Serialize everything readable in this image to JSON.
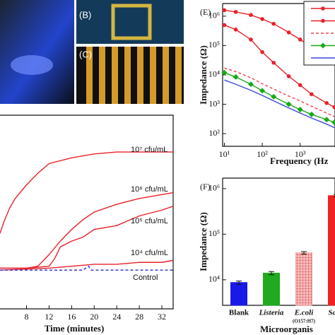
{
  "photos": {
    "labels": [
      "(B)",
      "(C)"
    ]
  },
  "chart_data": [
    {
      "type": "line",
      "x_label": "Time (minutes)",
      "xlim": [
        3.3,
        34
      ],
      "xticks": [
        8,
        12,
        16,
        20,
        24,
        28,
        32
      ],
      "ylim": [
        0,
        100
      ],
      "series": [
        {
          "name": "10⁷ cfu/mL",
          "color": "#e8202a",
          "dash": false,
          "x": [
            3.3,
            4,
            5,
            6,
            8,
            10,
            12,
            16,
            20,
            24,
            28,
            32,
            34
          ],
          "values": [
            39,
            45,
            52,
            57,
            64,
            70,
            75,
            78,
            80,
            81,
            81,
            81,
            81
          ]
        },
        {
          "name": "10⁶ cfu/mL",
          "color": "#e8202a",
          "dash": false,
          "x": [
            3.3,
            8,
            10,
            12,
            14,
            16,
            18,
            20,
            24,
            28,
            32,
            34
          ],
          "values": [
            21,
            21,
            22,
            28,
            35,
            41,
            46,
            50,
            54,
            57,
            59,
            60
          ]
        },
        {
          "name": "10⁵ cfu/mL",
          "color": "#e8202a",
          "dash": false,
          "x": [
            3.3,
            8,
            12,
            13,
            14,
            16,
            18,
            20,
            24,
            28,
            32,
            34
          ],
          "values": [
            21,
            21,
            22,
            26,
            32,
            35,
            37,
            41,
            43,
            48,
            51,
            53
          ]
        },
        {
          "name": "10⁴ cfu/mL",
          "color": "#e8202a",
          "dash": false,
          "x": [
            3.3,
            12,
            16,
            20,
            24,
            28,
            32,
            34
          ],
          "values": [
            20,
            21,
            22,
            23,
            23,
            24,
            24,
            25
          ]
        },
        {
          "name": "Control",
          "color": "#2a2ad0",
          "dash": true,
          "x": [
            3.3,
            8,
            12,
            16,
            18,
            19,
            19.5,
            20,
            24,
            28,
            32,
            34
          ],
          "values": [
            20,
            20,
            20,
            20,
            20,
            22,
            20,
            20,
            20,
            20,
            20,
            20
          ]
        }
      ]
    },
    {
      "type": "line",
      "panel_label": "(E)",
      "x_label": "Frequency (Hz",
      "y_label": "Impedance (Ω)",
      "log_x": true,
      "log_y": true,
      "xlim": [
        9,
        8300
      ],
      "ylim": [
        37,
        2700000
      ],
      "xticks": [
        {
          "value": 10,
          "label": "10¹"
        },
        {
          "value": 100,
          "label": "10²"
        },
        {
          "value": 1000,
          "label": "10³"
        }
      ],
      "yticks": [
        {
          "value": 100,
          "label": "10²"
        },
        {
          "value": 1000,
          "label": "10³"
        },
        {
          "value": 10000,
          "label": "10⁴"
        },
        {
          "value": 100000,
          "label": "10⁵"
        },
        {
          "value": 1000000,
          "label": "10⁶"
        }
      ],
      "series": [
        {
          "color": "#e8202a",
          "marker": "circle",
          "dash": false,
          "x": [
            10,
            20,
            50,
            100,
            200,
            500,
            1000,
            2000,
            5000,
            8000
          ],
          "values": [
            1600000,
            1400000,
            1100000,
            800000,
            550000,
            280000,
            160000,
            90000,
            50000,
            35000
          ]
        },
        {
          "color": "#e8202a",
          "marker": "circle",
          "dash": false,
          "x": [
            10,
            20,
            50,
            100,
            200,
            500,
            1000,
            2000,
            5000,
            8000
          ],
          "values": [
            500000,
            350000,
            160000,
            60000,
            26000,
            9000,
            4500,
            2200,
            1100,
            800
          ]
        },
        {
          "color": "#f04050",
          "marker": null,
          "dash": true,
          "x": [
            10,
            20,
            50,
            100,
            200,
            500,
            1000,
            2000,
            5000,
            8000
          ],
          "values": [
            17000,
            13000,
            8000,
            5000,
            3300,
            1900,
            1300,
            850,
            500,
            380
          ]
        },
        {
          "color": "#18a818",
          "marker": "diamond",
          "dash": false,
          "x": [
            10,
            20,
            50,
            100,
            200,
            500,
            1000,
            2000,
            5000,
            8000
          ],
          "values": [
            12000,
            8500,
            4800,
            2900,
            1800,
            1000,
            660,
            450,
            300,
            240
          ]
        },
        {
          "color": "#3a4ad8",
          "marker": null,
          "dash": false,
          "x": [
            10,
            20,
            50,
            100,
            200,
            500,
            1000,
            2000,
            5000,
            8000
          ],
          "values": [
            6700,
            4800,
            3000,
            2000,
            1300,
            750,
            500,
            340,
            210,
            160
          ]
        }
      ]
    },
    {
      "type": "bar",
      "panel_label": "(F)",
      "x_label": "Microorganis",
      "y_label": "Impedance (Ω)",
      "log_y": true,
      "ylim": [
        2750,
        1700000
      ],
      "yticks": [
        {
          "value": 10000,
          "label": "10⁴"
        },
        {
          "value": 100000,
          "label": "10⁵"
        },
        {
          "value": 1000000,
          "label": "10⁶"
        }
      ],
      "categories": [
        "Blank",
        "Listeria",
        "E.coli",
        "Salm"
      ],
      "category_notes": [
        null,
        null,
        "(O157:H7)",
        null
      ],
      "values": [
        8700,
        14000,
        39000,
        700000
      ],
      "errors": [
        700,
        1100,
        2500,
        40000
      ],
      "colors": [
        "#1a1ae6",
        "#1faa1f",
        "#f4a0a0",
        "#ee2222"
      ],
      "hatch": [
        false,
        false,
        true,
        false
      ]
    }
  ]
}
